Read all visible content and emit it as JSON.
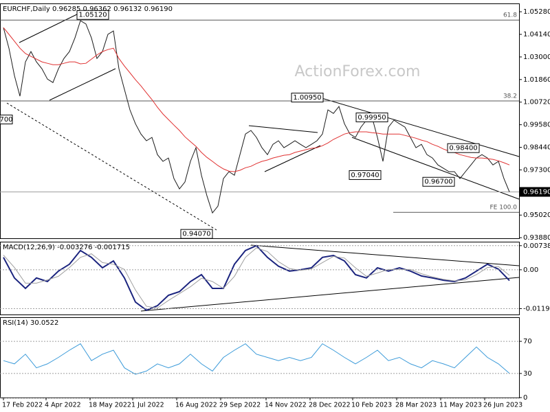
{
  "chart_data": [
    {
      "type": "line",
      "title": "EURCHF,Daily 0.96285 0.96362 0.96132 0.96190",
      "watermark": "ActionForex.com",
      "x": [
        0,
        4,
        8,
        12,
        16,
        20,
        24,
        28,
        32,
        36,
        40,
        44,
        48,
        52,
        56,
        60,
        64,
        68,
        72,
        76,
        80,
        84,
        88,
        92,
        96,
        100,
        104,
        108,
        112,
        116,
        120,
        124,
        128,
        132,
        136,
        140,
        144,
        148,
        152,
        156,
        160,
        164,
        168,
        172,
        176,
        180,
        184,
        188,
        192,
        196,
        200,
        204,
        208,
        212,
        216,
        220,
        224,
        228,
        232,
        236,
        240,
        244,
        248,
        252,
        256,
        260,
        264,
        268,
        272,
        276,
        280,
        284,
        288,
        292,
        296,
        300,
        304,
        308,
        312,
        316,
        320,
        324,
        328,
        332,
        336,
        340,
        344,
        348,
        352,
        356,
        360,
        364,
        368
      ],
      "xlim": [
        -2.5,
        375
      ],
      "ylim": [
        0.9385,
        1.057
      ],
      "yticks": [
        {
          "value": 1.0528,
          "label": "1.05280"
        },
        {
          "value": 1.0414,
          "label": "1.04140"
        },
        {
          "value": 1.03,
          "label": "1.03000"
        },
        {
          "value": 1.0186,
          "label": "1.01860"
        },
        {
          "value": 1.0072,
          "label": "1.00720"
        },
        {
          "value": 0.9958,
          "label": "0.99580"
        },
        {
          "value": 0.9844,
          "label": "0.98440"
        },
        {
          "value": 0.973,
          "label": "0.97300"
        },
        {
          "value": 0.9502,
          "label": "0.95020"
        },
        {
          "value": 0.9388,
          "label": "0.93880"
        }
      ],
      "series": [
        {
          "color": "#1a1a1a",
          "values": [
            1.0448,
            1.0344,
            1.0206,
            1.0102,
            1.0275,
            1.0327,
            1.0275,
            1.024,
            1.0188,
            1.0171,
            1.024,
            1.0292,
            1.0327,
            1.0396,
            1.0483,
            1.0466,
            1.0396,
            1.0292,
            1.0327,
            1.0414,
            1.0431,
            1.024,
            1.0136,
            1.0033,
            0.9963,
            0.9911,
            0.9877,
            0.9894,
            0.9807,
            0.9773,
            0.979,
            0.9686,
            0.9634,
            0.9669,
            0.9773,
            0.9842,
            0.9703,
            0.9599,
            0.9513,
            0.9547,
            0.9686,
            0.9721,
            0.9703,
            0.9807,
            0.9911,
            0.9929,
            0.9894,
            0.9842,
            0.9807,
            0.9859,
            0.9877,
            0.9842,
            0.9859,
            0.9877,
            0.9859,
            0.9842,
            0.9859,
            0.9877,
            0.9911,
            1.0033,
            1.0015,
            1.005,
            0.9963,
            0.9911,
            0.9894,
            0.9946,
            0.9981,
            0.9998,
            0.9894,
            0.9773,
            0.9946,
            0.9981,
            0.9963,
            0.9946,
            0.9894,
            0.9842,
            0.9859,
            0.9807,
            0.979,
            0.9755,
            0.9738,
            0.9721,
            0.9721,
            0.9686,
            0.9721,
            0.9755,
            0.979,
            0.9807,
            0.979,
            0.9755,
            0.9773,
            0.9686,
            0.9619
          ]
        },
        {
          "color": "#e03030",
          "values": [
            1.0448,
            1.0414,
            1.0379,
            1.0344,
            1.0317,
            1.0303,
            1.0289,
            1.0275,
            1.0268,
            1.0261,
            1.0261,
            1.0268,
            1.0275,
            1.0275,
            1.0265,
            1.0268,
            1.0289,
            1.031,
            1.0327,
            1.0337,
            1.0344,
            1.0292,
            1.0254,
            1.022,
            1.0185,
            1.0154,
            1.0119,
            1.0085,
            1.0046,
            1.0012,
            0.9984,
            0.9956,
            0.9929,
            0.9897,
            0.9873,
            0.9849,
            0.9818,
            0.9793,
            0.9773,
            0.9752,
            0.9735,
            0.9724,
            0.9721,
            0.9728,
            0.9741,
            0.9748,
            0.9762,
            0.9773,
            0.978,
            0.979,
            0.9797,
            0.9804,
            0.9807,
            0.9818,
            0.9825,
            0.9832,
            0.9839,
            0.9842,
            0.9852,
            0.9866,
            0.9884,
            0.9897,
            0.9911,
            0.9918,
            0.9922,
            0.9922,
            0.9922,
            0.9918,
            0.9915,
            0.9911,
            0.9911,
            0.9911,
            0.9911,
            0.9904,
            0.9897,
            0.989,
            0.988,
            0.9873,
            0.9859,
            0.9849,
            0.9835,
            0.9825,
            0.9818,
            0.9807,
            0.98,
            0.9793,
            0.979,
            0.979,
            0.9787,
            0.9783,
            0.9776,
            0.9766,
            0.9755
          ]
        }
      ],
      "last_price": {
        "value": 0.9619,
        "label": "0.96190"
      },
      "levels": [
        {
          "label": "61.8",
          "value": 1.0486
        },
        {
          "label": "38.2",
          "value": 1.0078
        },
        {
          "label": "FE 100.0",
          "value": 0.9516
        }
      ],
      "annotations": [
        {
          "label": "1.05120",
          "value": 1.0512
        },
        {
          "label": "1.00950",
          "value": 1.0095
        },
        {
          "label": "0.99950",
          "value": 0.9995
        },
        {
          "label": "0.98400",
          "value": 0.984
        },
        {
          "label": "0.97040",
          "value": 0.9704
        },
        {
          "label": "0.96700",
          "value": 0.967
        },
        {
          "label": "0.94070",
          "value": 0.9407
        },
        {
          "label": "700"
        }
      ]
    },
    {
      "type": "line",
      "title": "MACD(12,26,9) -0.003276 -0.001715",
      "x": [
        0,
        8,
        16,
        24,
        32,
        40,
        48,
        56,
        64,
        72,
        80,
        88,
        96,
        104,
        112,
        120,
        128,
        136,
        144,
        152,
        160,
        168,
        176,
        184,
        192,
        200,
        208,
        216,
        224,
        232,
        240,
        248,
        256,
        264,
        272,
        280,
        288,
        296,
        304,
        312,
        320,
        328,
        336,
        344,
        352,
        360,
        368
      ],
      "xlim": [
        -2.5,
        375
      ],
      "ylim": [
        -0.0137,
        0.0086
      ],
      "yticks": [
        0.007384,
        {
          "value": 0,
          "label": "0.00"
        },
        -0.0119
      ],
      "series": [
        {
          "color": "#1a237e",
          "values": [
            0.0038,
            -0.0025,
            -0.0057,
            -0.0025,
            -0.0036,
            -0.0004,
            0.0017,
            0.0059,
            0.0038,
            0.0006,
            0.0027,
            -0.0025,
            -0.0099,
            -0.0124,
            -0.011,
            -0.0078,
            -0.0067,
            -0.0036,
            -0.0015,
            -0.0057,
            -0.0057,
            0.0017,
            0.0059,
            0.0074,
            0.0038,
            0.0011,
            -0.0004,
            0,
            0.0006,
            0.0038,
            0.0044,
            0.0027,
            -0.0015,
            -0.0025,
            0.0006,
            -0.0004,
            0.0006,
            -0.0004,
            -0.0019,
            -0.0025,
            -0.0032,
            -0.0036,
            -0.0025,
            -0.0004,
            0.0017,
            0.0002,
            -0.0033
          ]
        },
        {
          "color": "#9e9e9e",
          "values": [
            0.0045,
            0.0007,
            -0.0041,
            -0.0041,
            -0.0031,
            -0.002,
            0.0007,
            0.0038,
            0.0049,
            0.0022,
            0.0017,
            0.0001,
            -0.0062,
            -0.0112,
            -0.0117,
            -0.0094,
            -0.0073,
            -0.0052,
            -0.0026,
            -0.0036,
            -0.0057,
            -0.002,
            0.0038,
            0.0067,
            0.0056,
            0.0025,
            0.0004,
            -0.0002,
            0.0003,
            0.0022,
            0.0041,
            0.0036,
            0.0006,
            -0.002,
            -0.001,
            0.0001,
            0.0001,
            0.0001,
            -0.0012,
            -0.0022,
            -0.0029,
            -0.0034,
            -0.0031,
            -0.0015,
            0.0007,
            0.001,
            -0.0017
          ]
        }
      ]
    },
    {
      "type": "line",
      "title": "RSI(14) 30.0522",
      "x": [
        0,
        8,
        16,
        24,
        32,
        40,
        48,
        56,
        64,
        72,
        80,
        88,
        96,
        104,
        112,
        120,
        128,
        136,
        144,
        152,
        160,
        168,
        176,
        184,
        192,
        200,
        208,
        216,
        224,
        232,
        240,
        248,
        256,
        264,
        272,
        280,
        288,
        296,
        304,
        312,
        320,
        328,
        336,
        344,
        352,
        360,
        368
      ],
      "xlim": [
        -2.5,
        375
      ],
      "ylim": [
        0,
        100
      ],
      "yticks": [
        70,
        30,
        0
      ],
      "xticks": [
        {
          "value": 0,
          "label": "17 Feb 2022"
        },
        {
          "value": 31,
          "label": "4 Apr 2022"
        },
        {
          "value": 63,
          "label": "18 May 2022"
        },
        {
          "value": 94,
          "label": "1 Jul 2022"
        },
        {
          "value": 126,
          "label": "16 Aug 2022"
        },
        {
          "value": 158,
          "label": "29 Sep 2022"
        },
        {
          "value": 191,
          "label": "14 Nov 2022"
        },
        {
          "value": 223,
          "label": "28 Dec 2022"
        },
        {
          "value": 254,
          "label": "10 Feb 2023"
        },
        {
          "value": 286,
          "label": "28 Mar 2023"
        },
        {
          "value": 318,
          "label": "11 May 2023"
        },
        {
          "value": 350,
          "label": "26 Jun 2023"
        }
      ],
      "series": [
        {
          "color": "#3a9ad9",
          "values": [
            46,
            42,
            54,
            37,
            42,
            50,
            59,
            67,
            46,
            54,
            59,
            37,
            29,
            33,
            42,
            37,
            42,
            54,
            42,
            33,
            50,
            59,
            67,
            54,
            50,
            46,
            50,
            46,
            50,
            67,
            59,
            50,
            42,
            50,
            59,
            46,
            50,
            42,
            37,
            46,
            42,
            37,
            50,
            63,
            50,
            42,
            30.1
          ]
        }
      ]
    }
  ]
}
